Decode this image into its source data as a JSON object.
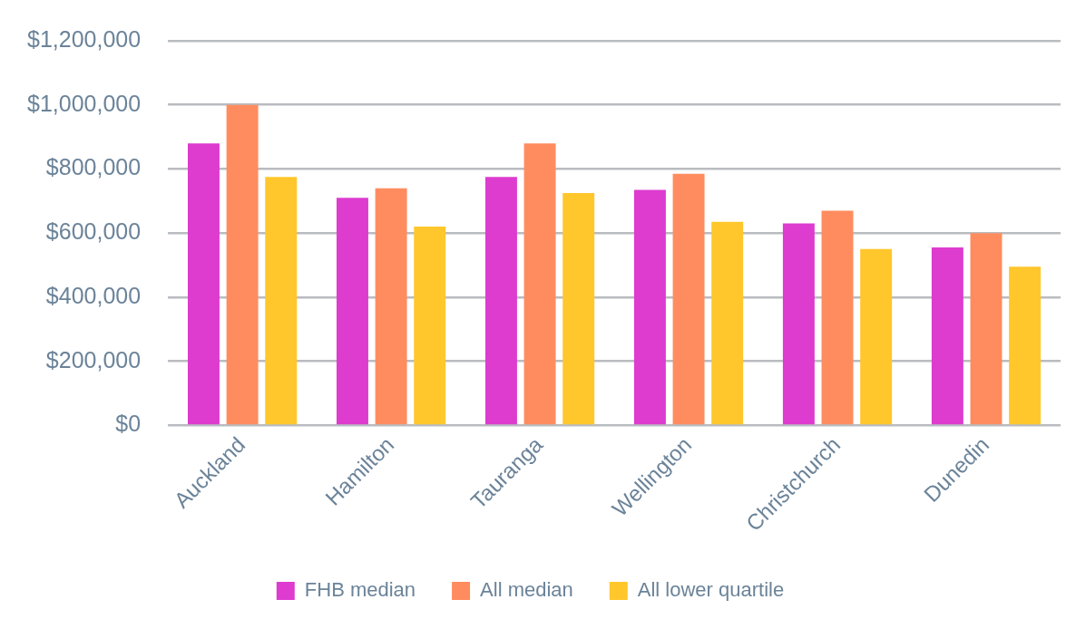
{
  "chart_data": {
    "type": "bar",
    "categories": [
      "Auckland",
      "Hamilton",
      "Tauranga",
      "Wellington",
      "Christchurch",
      "Dunedin"
    ],
    "series": [
      {
        "name": "FHB median",
        "color": "#dd3ccf",
        "values": [
          880000,
          710000,
          775000,
          735000,
          630000,
          555000
        ]
      },
      {
        "name": "All median",
        "color": "#ff8c5f",
        "values": [
          1000000,
          740000,
          880000,
          785000,
          670000,
          600000
        ]
      },
      {
        "name": "All lower quartile",
        "color": "#ffc72c",
        "values": [
          775000,
          620000,
          725000,
          635000,
          550000,
          495000
        ]
      }
    ],
    "ylim": [
      0,
      1200000
    ],
    "yticks": [
      {
        "value": 0,
        "label": "$0"
      },
      {
        "value": 200000,
        "label": "$200,000"
      },
      {
        "value": 400000,
        "label": "$400,000"
      },
      {
        "value": 600000,
        "label": "$600,000"
      },
      {
        "value": 800000,
        "label": "$800,000"
      },
      {
        "value": 1000000,
        "label": "$1,000,000"
      },
      {
        "value": 1200000,
        "label": "$1,200,000"
      }
    ],
    "grid": "y",
    "legend": "bottom"
  }
}
